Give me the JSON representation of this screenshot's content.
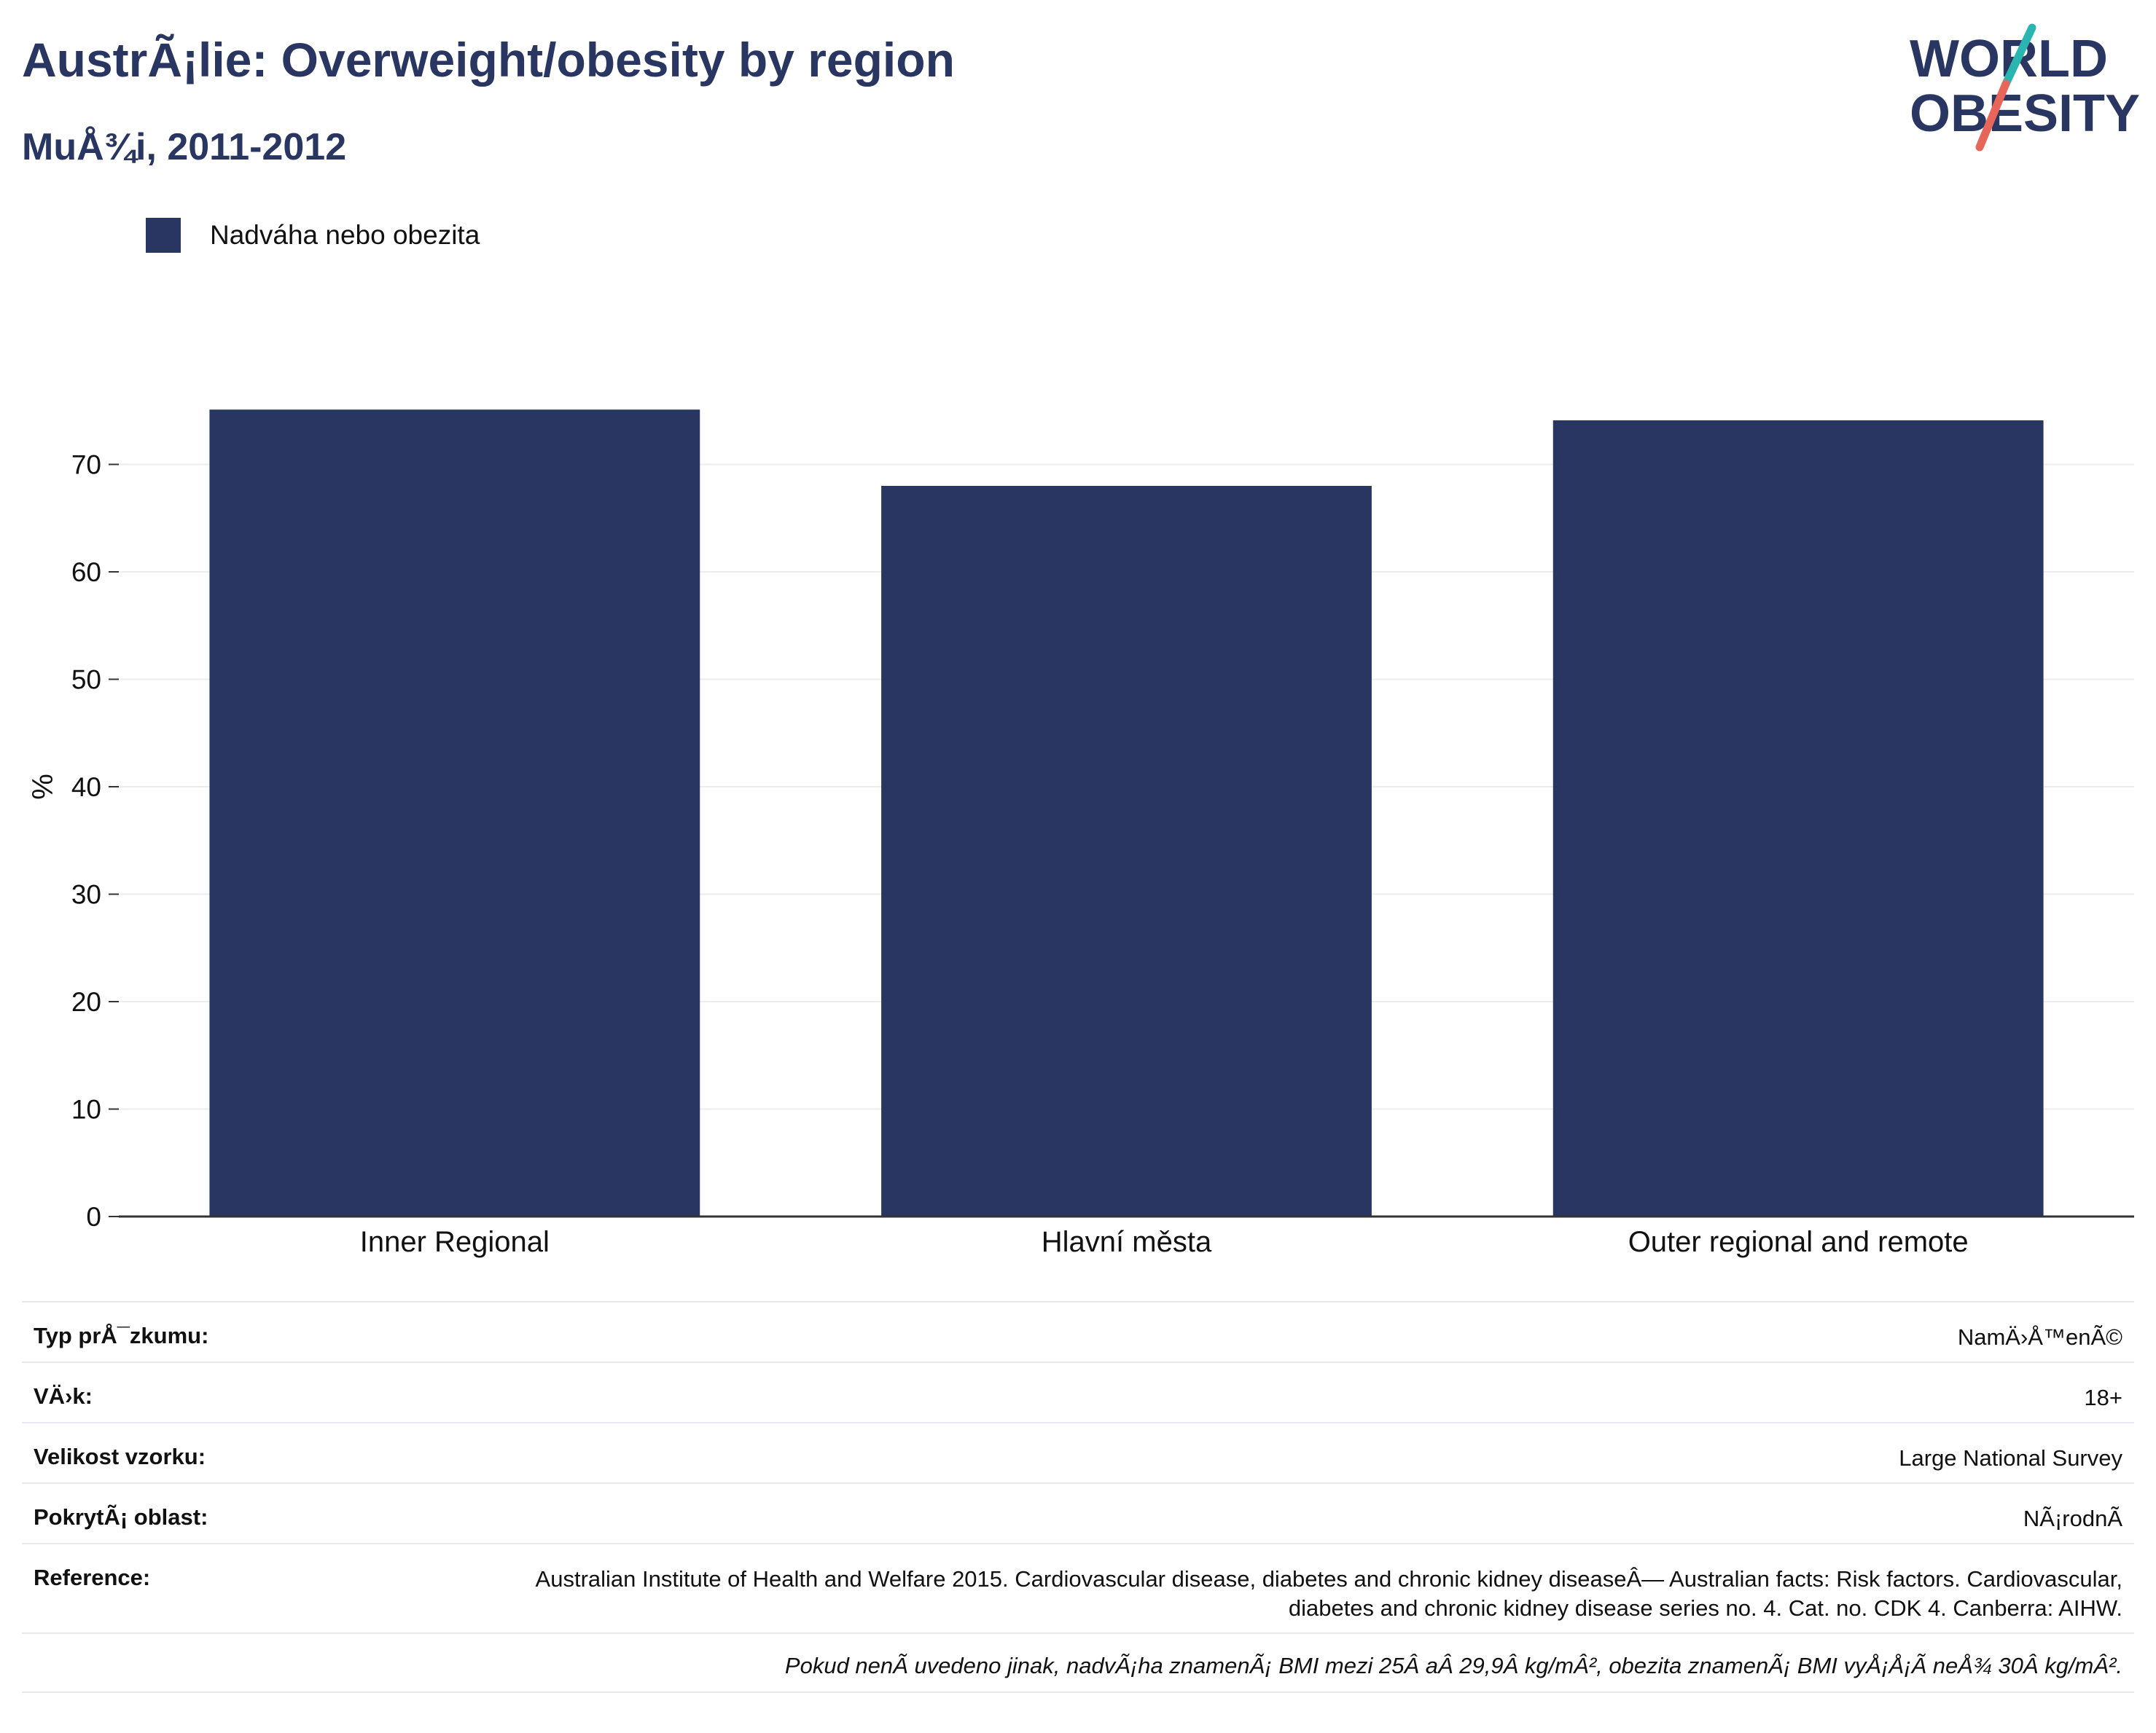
{
  "header": {
    "title": "AustrÃ¡lie: Overweight/obesity by region",
    "subtitle": "MuÅ¾i, 2011-2012"
  },
  "logo": {
    "line1": "WORLD",
    "line2": "OBESITY",
    "accent_teal": "#2bb5b0",
    "accent_coral": "#e8655a"
  },
  "colors": {
    "bar": "#2a3662",
    "text": "#2a3662",
    "gridline": "#ececf0",
    "axis": "#333333"
  },
  "chart_data": {
    "type": "bar",
    "categories": [
      "Inner Regional",
      "Hlavní města",
      "Outer regional and remote"
    ],
    "series": [
      {
        "name": "Nadváha nebo obezita",
        "values": [
          75.1,
          68.0,
          74.1
        ]
      }
    ],
    "ylabel": "%",
    "xlabel": "",
    "ylim": [
      0,
      80
    ],
    "yticks": [
      0,
      10,
      20,
      30,
      40,
      50,
      60,
      70
    ],
    "grid": true,
    "legend": "top-left"
  },
  "info": {
    "rows": [
      {
        "label": "Typ prÅ¯zkumu:",
        "value": "NamÄ›Å™enÃ©"
      },
      {
        "label": "VÄ›k:",
        "value": "18+"
      },
      {
        "label": "Velikost vzorku:",
        "value": "Large National Survey"
      },
      {
        "label": "PokrytÃ¡ oblast:",
        "value": "NÃ¡rodnÃ"
      },
      {
        "label": "Reference:",
        "value": "Australian Institute of Health and Welfare 2015. Cardiovascular disease, diabetes and chronic kidney diseaseÂ— Australian facts: Risk factors. Cardiovascular, diabetes and chronic kidney disease series no. 4. Cat. no. CDK 4. Canberra: AIHW."
      }
    ],
    "footnote": "Pokud nenÃ uvedeno jinak, nadvÃ¡ha znamenÃ¡ BMI mezi 25Â aÂ 29,9Â kg/mÂ², obezita znamenÃ¡ BMI vyÅ¡Å¡Ã neÅ¾ 30Â kg/mÂ²."
  }
}
